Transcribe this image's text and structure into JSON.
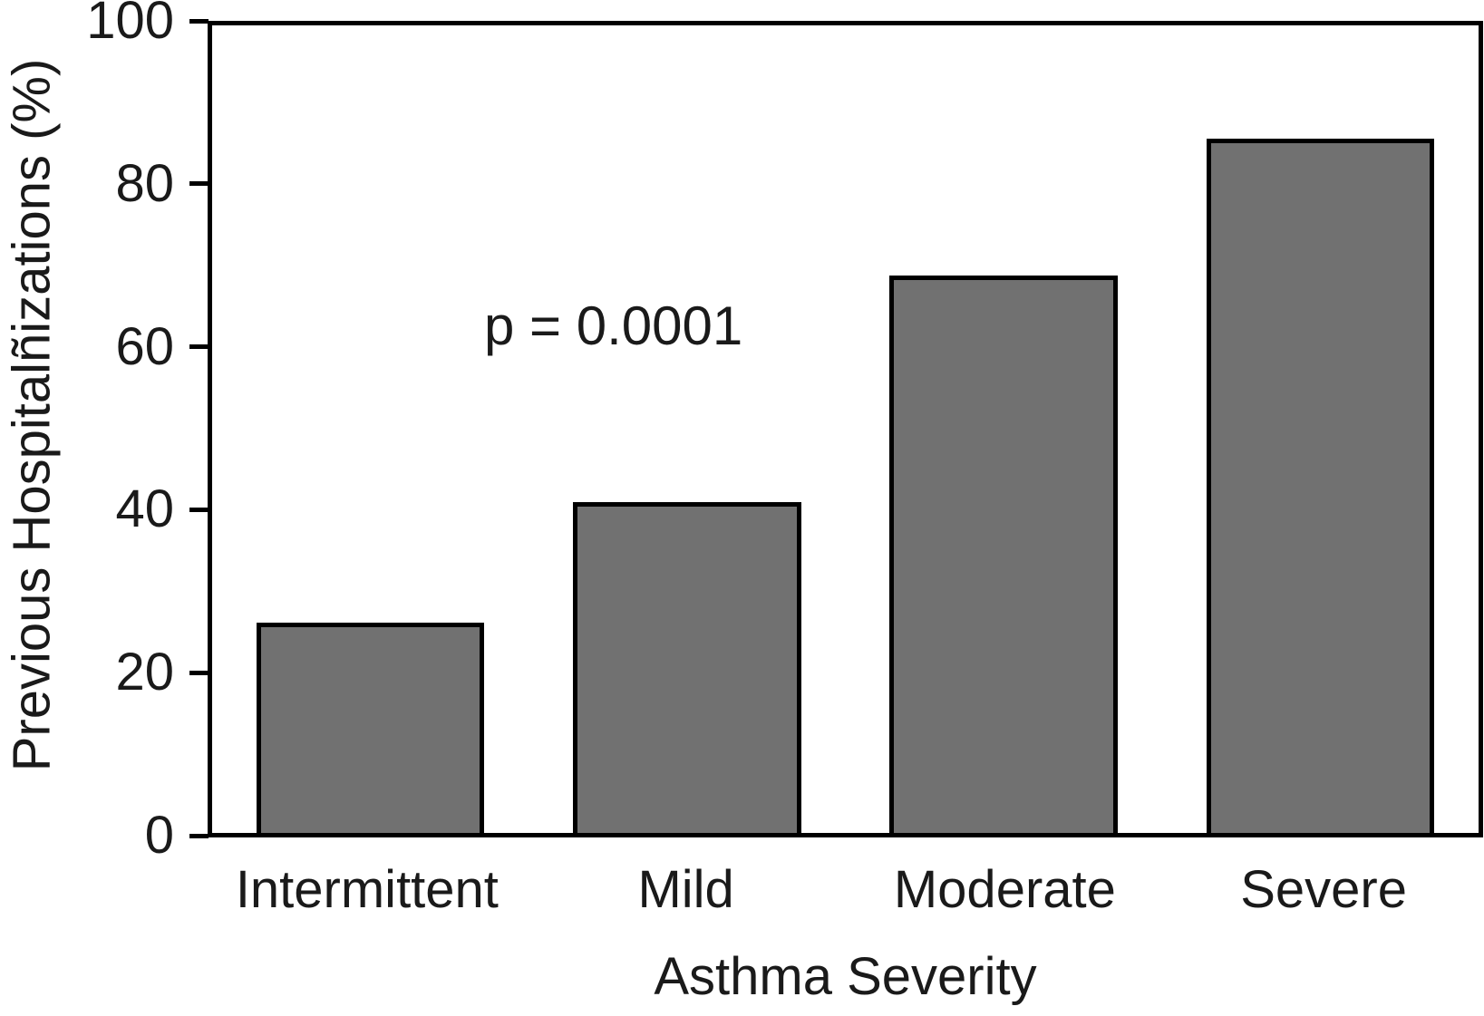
{
  "chart_data": {
    "type": "bar",
    "categories": [
      "Intermittent",
      "Mild",
      "Moderate",
      "Severe"
    ],
    "values": [
      26,
      41,
      69,
      86
    ],
    "title": "",
    "xlabel": "Asthma Severity",
    "ylabel": "Previous Hospitalñizations (%)",
    "ylim": [
      0,
      100
    ],
    "yticks": [
      0,
      20,
      40,
      60,
      80,
      100
    ],
    "annotation": "p = 0.0001",
    "bar_color": "#717171",
    "bar_edge_color": "#000000",
    "axis_color": "#000000",
    "background_color": "#ffffff",
    "grid": false,
    "legend": "none"
  }
}
